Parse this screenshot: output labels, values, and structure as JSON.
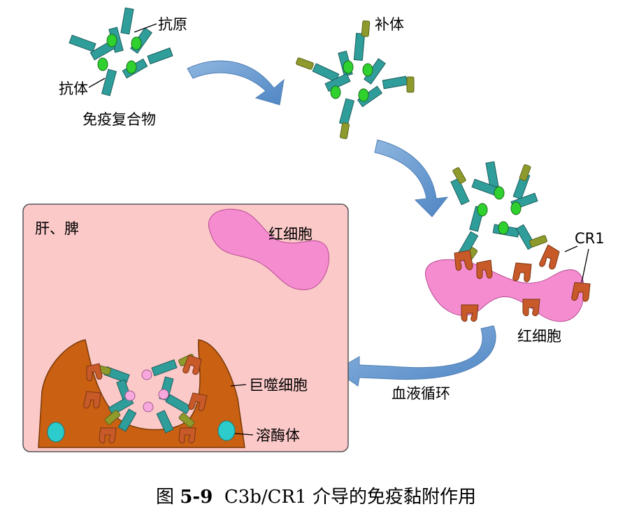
{
  "labels": {
    "antigen": "抗原",
    "antibody": "抗体",
    "immune_complex": "免疫复合物",
    "complement": "补体",
    "cr1": "CR1",
    "rbc_top": "红细胞",
    "rbc_box": "红细胞",
    "liver_spleen": "肝、脾",
    "blood_circulation": "血液循环",
    "macrophage": "巨噬细胞",
    "lysosome": "溶酶体"
  },
  "caption": {
    "prefix": "图 ",
    "figure_number": "5-9",
    "title": "C3b/CR1 介导的免疫黏附作用"
  },
  "colors": {
    "antibody": "#2f9e9b",
    "antibody_stroke": "#1d5e5c",
    "antigen": "#2fd12f",
    "antigen_internalized": "#f7a8de",
    "complement": "#8e9a2c",
    "cr1": "#c85a2a",
    "rbc": "#f58ccf",
    "box_bg": "#fcc9c9",
    "macrophage": "#c96012",
    "lysosome": "#2ccccc",
    "arrow": "#6d9ccf"
  }
}
